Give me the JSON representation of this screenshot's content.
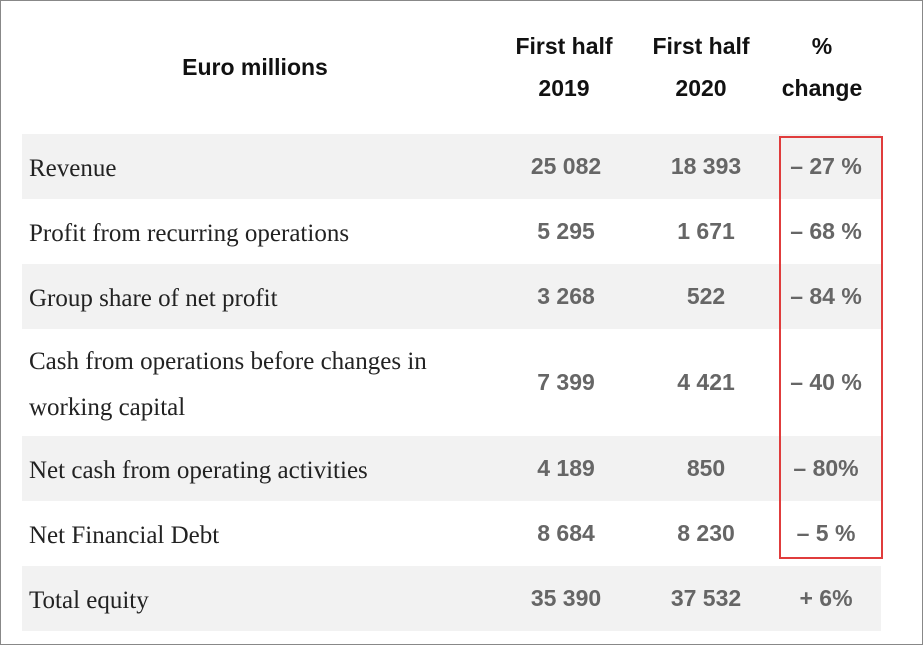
{
  "header": {
    "title": "Euro millions",
    "columns": [
      "First half 2019",
      "First half 2020",
      "% change"
    ]
  },
  "table": {
    "rows": [
      [
        "Revenue",
        "25 082",
        "18 393",
        "– 27 %"
      ],
      [
        "Profit from recurring operations",
        "5 295",
        "1 671",
        "– 68 %"
      ],
      [
        "Group share of net profit",
        "3 268",
        "522",
        "– 84 %"
      ],
      [
        "Cash from operations before changes in working capital",
        "7 399",
        "4 421",
        "– 40 %"
      ],
      [
        "Net cash from operating activities",
        "4 189",
        "850",
        "– 80%"
      ],
      [
        "Net Financial Debt",
        "8 684",
        "8 230",
        "– 5 %"
      ],
      [
        "Total equity",
        "35 390",
        "37 532",
        "+ 6%"
      ]
    ]
  }
}
